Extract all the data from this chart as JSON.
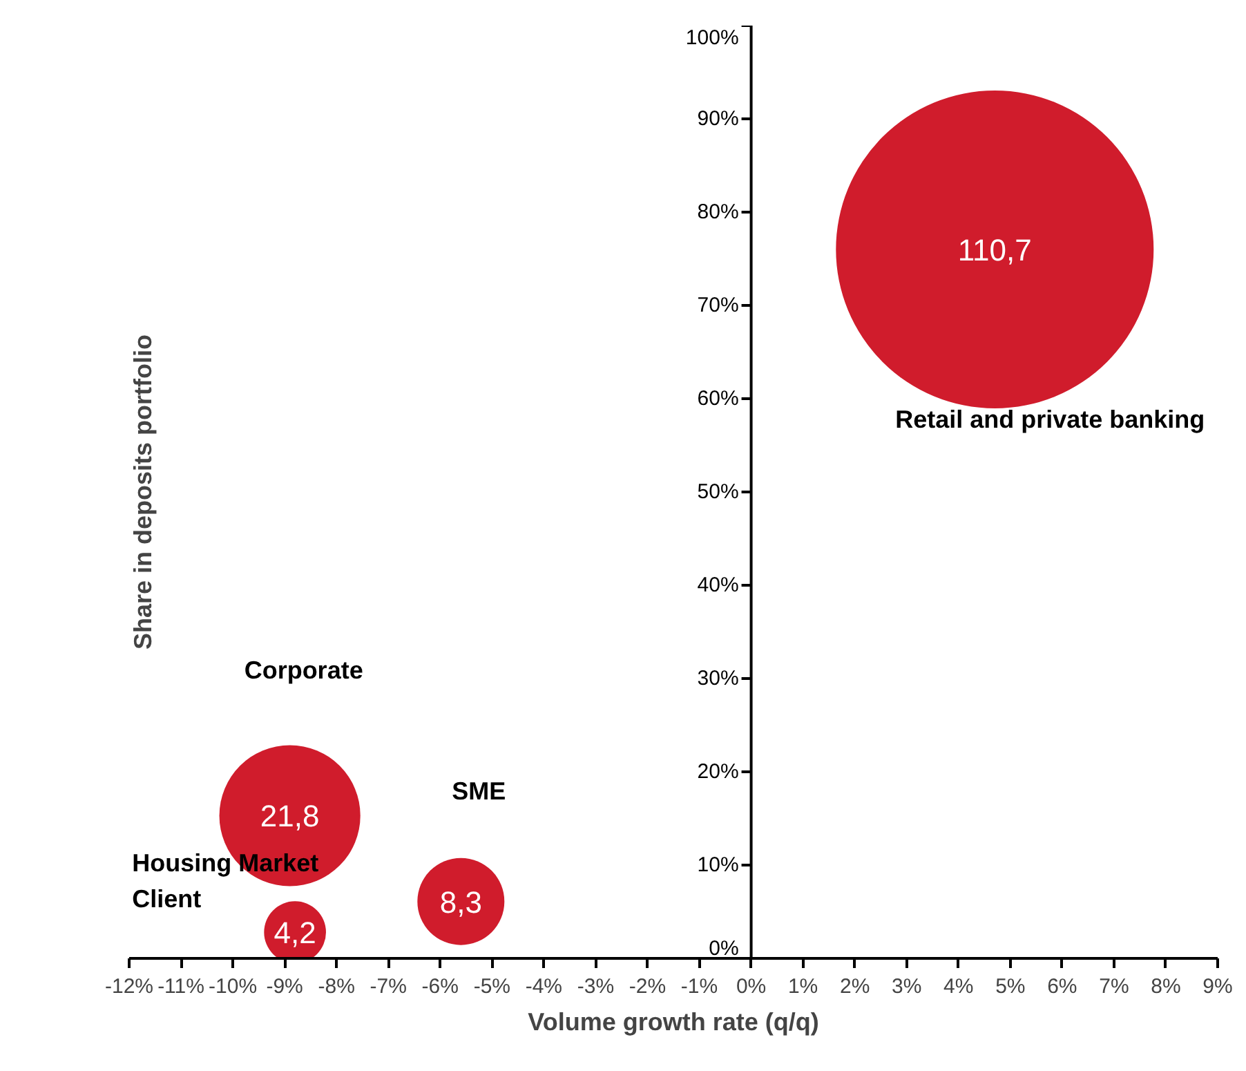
{
  "chart_data": {
    "type": "bubble",
    "xlabel": "Volume growth rate (q/q)",
    "ylabel": "Share in deposits portfolio",
    "xlim": [
      -12,
      9
    ],
    "ylim": [
      0,
      100
    ],
    "xticks": [
      {
        "value": -12,
        "label": "-12%"
      },
      {
        "value": -11,
        "label": "-11%"
      },
      {
        "value": -10,
        "label": "-10%"
      },
      {
        "value": -9,
        "label": "-9%"
      },
      {
        "value": -8,
        "label": "-8%"
      },
      {
        "value": -7,
        "label": "-7%"
      },
      {
        "value": -6,
        "label": "-6%"
      },
      {
        "value": -5,
        "label": "-5%"
      },
      {
        "value": -4,
        "label": "-4%"
      },
      {
        "value": -3,
        "label": "-3%"
      },
      {
        "value": -2,
        "label": "-2%"
      },
      {
        "value": -1,
        "label": "-1%"
      },
      {
        "value": 0,
        "label": "0%"
      },
      {
        "value": 1,
        "label": "1%"
      },
      {
        "value": 2,
        "label": "2%"
      },
      {
        "value": 3,
        "label": "3%"
      },
      {
        "value": 4,
        "label": "4%"
      },
      {
        "value": 5,
        "label": "5%"
      },
      {
        "value": 6,
        "label": "6%"
      },
      {
        "value": 7,
        "label": "7%"
      },
      {
        "value": 8,
        "label": "8%"
      },
      {
        "value": 9,
        "label": "9%"
      }
    ],
    "yticks": [
      {
        "value": 0,
        "label": "0%"
      },
      {
        "value": 10,
        "label": "10%"
      },
      {
        "value": 20,
        "label": "20%"
      },
      {
        "value": 30,
        "label": "30%"
      },
      {
        "value": 40,
        "label": "40%"
      },
      {
        "value": 50,
        "label": "50%"
      },
      {
        "value": 60,
        "label": "60%"
      },
      {
        "value": 70,
        "label": "70%"
      },
      {
        "value": 80,
        "label": "80%"
      },
      {
        "value": 90,
        "label": "90%"
      },
      {
        "value": 100,
        "label": "100%"
      }
    ],
    "grid": false,
    "annotations": [
      {
        "text": "110,7",
        "x": 4.7,
        "y": 76
      },
      {
        "text": "21,8",
        "x": -8.9,
        "y": 15.3
      },
      {
        "text": "8,3",
        "x": -5.6,
        "y": 6.1
      },
      {
        "text": "4,2",
        "x": -8.8,
        "y": 2.8
      }
    ],
    "series": [
      {
        "name": "Retail and private banking",
        "color": "#d01c2c",
        "x": [
          4.7
        ],
        "values": [
          76
        ],
        "sizes": [
          1
        ]
      },
      {
        "name": "Corporate",
        "color": "#d01c2c",
        "x": [
          -8.9
        ],
        "values": [
          15.3
        ],
        "sizes": [
          0.197
        ]
      },
      {
        "name": "SME",
        "color": "#d01c2c",
        "x": [
          -5.6
        ],
        "values": [
          6.1
        ],
        "sizes": [
          0.075
        ]
      },
      {
        "name": "Housing Market\nClient",
        "color": "#d01c2c",
        "x": [
          -8.8
        ],
        "values": [
          2.8
        ],
        "sizes": [
          0.038
        ]
      }
    ]
  }
}
